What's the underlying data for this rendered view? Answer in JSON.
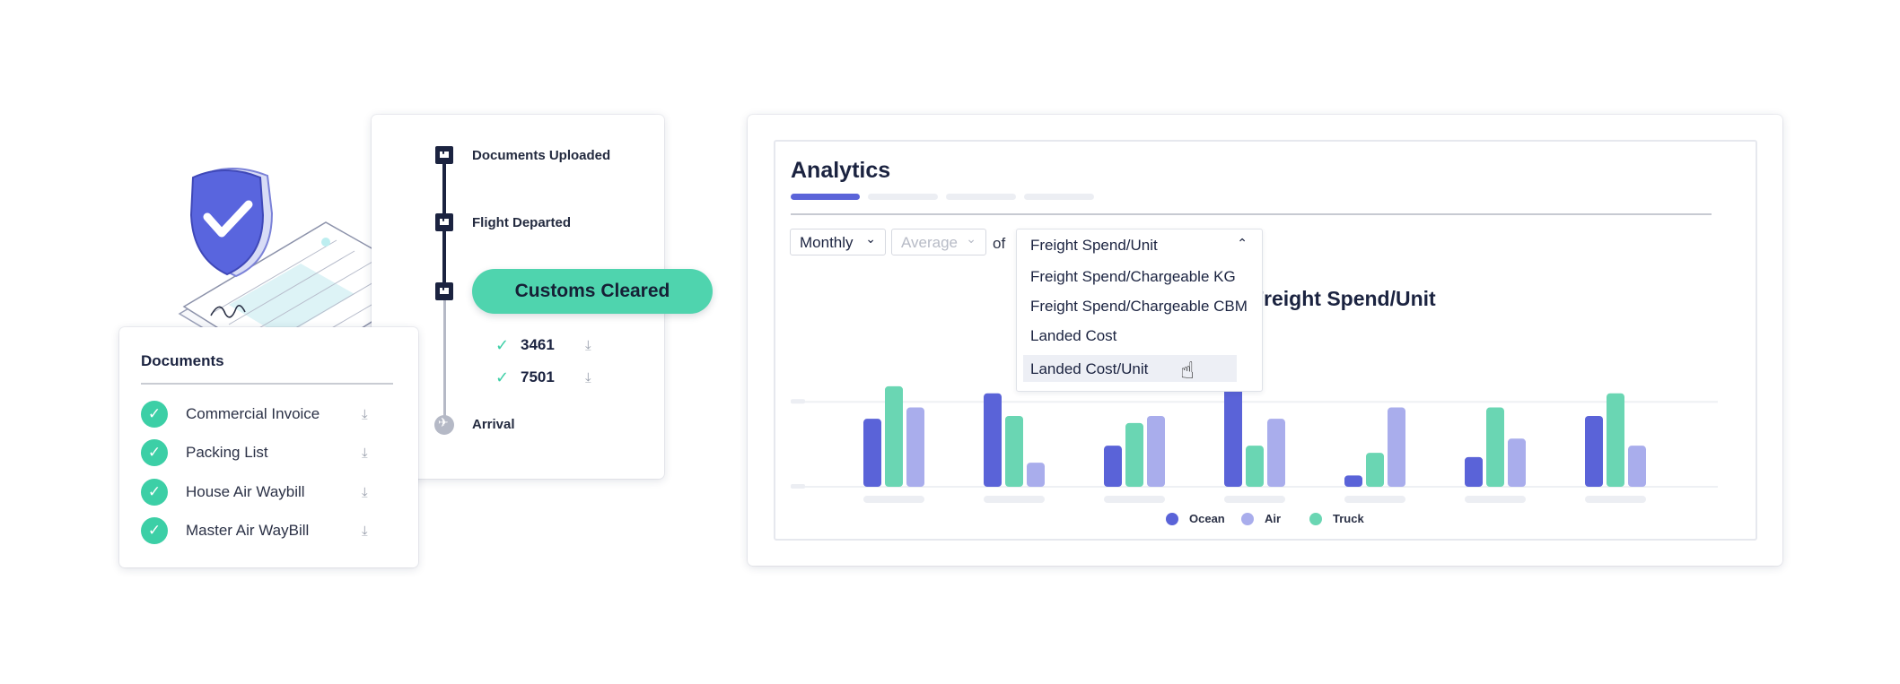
{
  "tracking": {
    "milestones": [
      {
        "label": "Documents Uploaded"
      },
      {
        "label": "Flight Departed"
      },
      {
        "label": "Arrival"
      }
    ],
    "status_pill": "Customs Cleared",
    "references": [
      {
        "number": "3461"
      },
      {
        "number": "7501"
      }
    ]
  },
  "documents": {
    "title": "Documents",
    "items": [
      {
        "label": "Commercial Invoice"
      },
      {
        "label": "Packing List"
      },
      {
        "label": "House Air Waybill"
      },
      {
        "label": "Master Air WayBill"
      }
    ]
  },
  "analytics": {
    "title": "Analytics",
    "period_select": "Monthly",
    "aggregate_select": "Average",
    "of_label": "of",
    "metric_select": "Freight Spend/Unit",
    "dropdown_options": [
      "Freight Spend/Chargeable KG",
      "Freight Spend/Chargeable CBM",
      "Landed Cost",
      "Landed Cost/Unit"
    ],
    "hovered_option": "Landed Cost/Unit"
  },
  "colors": {
    "accent": "#5b64d9",
    "ocean": "#5a63d8",
    "air": "#a9adec",
    "truck": "#6ad6b3",
    "status_green": "#4fd4ae"
  },
  "icons": {
    "milestone": "building-icon",
    "arrival": "plane-icon",
    "check": "checkmark-icon",
    "download": "download-icon",
    "chevron": "chevron-down-icon",
    "cursor": "hand-pointer-icon"
  },
  "chart_data": {
    "type": "bar",
    "title": "Freight Spend/Unit",
    "categories": [
      "",
      "",
      "",
      "",
      "",
      "",
      ""
    ],
    "series": [
      {
        "name": "Ocean",
        "values": [
          48,
          66,
          29,
          78,
          8,
          21,
          50
        ]
      },
      {
        "name": "Truck",
        "values": [
          71,
          50,
          45,
          29,
          24,
          56,
          66
        ]
      },
      {
        "name": "Air",
        "values": [
          56,
          17,
          50,
          48,
          56,
          34,
          29
        ]
      }
    ],
    "ylim": [
      0,
      100
    ],
    "grid": true,
    "legend_placement": "bottom-center",
    "legend": [
      "Ocean",
      "Air",
      "Truck"
    ]
  }
}
